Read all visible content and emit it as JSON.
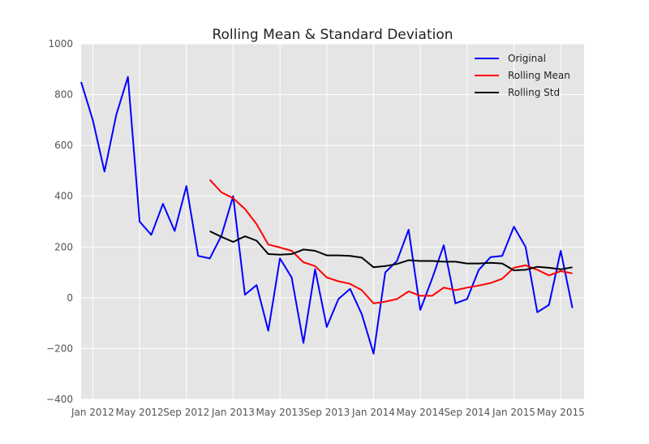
{
  "chart_data": {
    "type": "line",
    "title": "Rolling Mean & Standard Deviation",
    "xlabel": "",
    "ylabel": "",
    "ylim": [
      -400,
      1000
    ],
    "yticks": [
      -400,
      -200,
      0,
      200,
      400,
      600,
      800,
      1000
    ],
    "ytick_labels": [
      "−400",
      "−200",
      "0",
      "200",
      "400",
      "600",
      "800",
      "1000"
    ],
    "xlim": [
      "2011-12",
      "2015-07"
    ],
    "xticks": [
      {
        "date": "2012-01",
        "label": "Jan 2012"
      },
      {
        "date": "2012-05",
        "label": "May 2012"
      },
      {
        "date": "2012-09",
        "label": "Sep 2012"
      },
      {
        "date": "2013-01",
        "label": "Jan 2013"
      },
      {
        "date": "2013-05",
        "label": "May 2013"
      },
      {
        "date": "2013-09",
        "label": "Sep 2013"
      },
      {
        "date": "2014-01",
        "label": "Jan 2014"
      },
      {
        "date": "2014-05",
        "label": "May 2014"
      },
      {
        "date": "2014-09",
        "label": "Sep 2014"
      },
      {
        "date": "2015-01",
        "label": "Jan 2015"
      },
      {
        "date": "2015-05",
        "label": "May 2015"
      }
    ],
    "grid": true,
    "legend_position": "top-right",
    "series": [
      {
        "name": "Original",
        "color": "#0000ff",
        "points": [
          [
            "2011-12",
            850
          ],
          [
            "2012-01",
            700
          ],
          [
            "2012-02",
            497
          ],
          [
            "2012-03",
            720
          ],
          [
            "2012-04",
            870
          ],
          [
            "2012-05",
            300
          ],
          [
            "2012-06",
            248
          ],
          [
            "2012-07",
            370
          ],
          [
            "2012-08",
            263
          ],
          [
            "2012-09",
            440
          ],
          [
            "2012-10",
            165
          ],
          [
            "2012-11",
            155
          ],
          [
            "2012-12",
            245
          ],
          [
            "2013-01",
            400
          ],
          [
            "2013-02",
            12
          ],
          [
            "2013-03",
            50
          ],
          [
            "2013-04",
            -130
          ],
          [
            "2013-05",
            155
          ],
          [
            "2013-06",
            80
          ],
          [
            "2013-07",
            -178
          ],
          [
            "2013-08",
            112
          ],
          [
            "2013-09",
            -115
          ],
          [
            "2013-10",
            -5
          ],
          [
            "2013-11",
            35
          ],
          [
            "2013-12",
            -65
          ],
          [
            "2014-01",
            -220
          ],
          [
            "2014-02",
            100
          ],
          [
            "2014-03",
            145
          ],
          [
            "2014-04",
            268
          ],
          [
            "2014-05",
            -48
          ],
          [
            "2014-06",
            75
          ],
          [
            "2014-07",
            207
          ],
          [
            "2014-08",
            -22
          ],
          [
            "2014-09",
            -5
          ],
          [
            "2014-10",
            110
          ],
          [
            "2014-11",
            160
          ],
          [
            "2014-12",
            165
          ],
          [
            "2015-01",
            280
          ],
          [
            "2015-02",
            200
          ],
          [
            "2015-03",
            -57
          ],
          [
            "2015-04",
            -28
          ],
          [
            "2015-05",
            185
          ],
          [
            "2015-06",
            -40
          ]
        ]
      },
      {
        "name": "Rolling Mean",
        "color": "#ff0000",
        "points": [
          [
            "2012-11",
            465
          ],
          [
            "2012-12",
            415
          ],
          [
            "2013-01",
            392
          ],
          [
            "2013-02",
            350
          ],
          [
            "2013-03",
            290
          ],
          [
            "2013-04",
            210
          ],
          [
            "2013-05",
            198
          ],
          [
            "2013-06",
            185
          ],
          [
            "2013-07",
            140
          ],
          [
            "2013-08",
            125
          ],
          [
            "2013-09",
            80
          ],
          [
            "2013-10",
            65
          ],
          [
            "2013-11",
            55
          ],
          [
            "2013-12",
            30
          ],
          [
            "2014-01",
            -22
          ],
          [
            "2014-02",
            -15
          ],
          [
            "2014-03",
            -5
          ],
          [
            "2014-04",
            25
          ],
          [
            "2014-05",
            8
          ],
          [
            "2014-06",
            8
          ],
          [
            "2014-07",
            40
          ],
          [
            "2014-08",
            30
          ],
          [
            "2014-09",
            40
          ],
          [
            "2014-10",
            48
          ],
          [
            "2014-11",
            58
          ],
          [
            "2014-12",
            75
          ],
          [
            "2015-01",
            118
          ],
          [
            "2015-02",
            128
          ],
          [
            "2015-03",
            110
          ],
          [
            "2015-04",
            88
          ],
          [
            "2015-05",
            105
          ],
          [
            "2015-06",
            96
          ]
        ]
      },
      {
        "name": "Rolling Std",
        "color": "#000000",
        "points": [
          [
            "2012-11",
            262
          ],
          [
            "2012-12",
            240
          ],
          [
            "2013-01",
            220
          ],
          [
            "2013-02",
            242
          ],
          [
            "2013-03",
            225
          ],
          [
            "2013-04",
            172
          ],
          [
            "2013-05",
            170
          ],
          [
            "2013-06",
            172
          ],
          [
            "2013-07",
            190
          ],
          [
            "2013-08",
            185
          ],
          [
            "2013-09",
            167
          ],
          [
            "2013-10",
            167
          ],
          [
            "2013-11",
            165
          ],
          [
            "2013-12",
            158
          ],
          [
            "2014-01",
            120
          ],
          [
            "2014-02",
            125
          ],
          [
            "2014-03",
            133
          ],
          [
            "2014-04",
            148
          ],
          [
            "2014-05",
            145
          ],
          [
            "2014-06",
            145
          ],
          [
            "2014-07",
            142
          ],
          [
            "2014-08",
            142
          ],
          [
            "2014-09",
            135
          ],
          [
            "2014-10",
            135
          ],
          [
            "2014-11",
            138
          ],
          [
            "2014-12",
            135
          ],
          [
            "2015-01",
            108
          ],
          [
            "2015-02",
            110
          ],
          [
            "2015-03",
            122
          ],
          [
            "2015-04",
            118
          ],
          [
            "2015-05",
            112
          ],
          [
            "2015-06",
            120
          ]
        ]
      }
    ]
  }
}
